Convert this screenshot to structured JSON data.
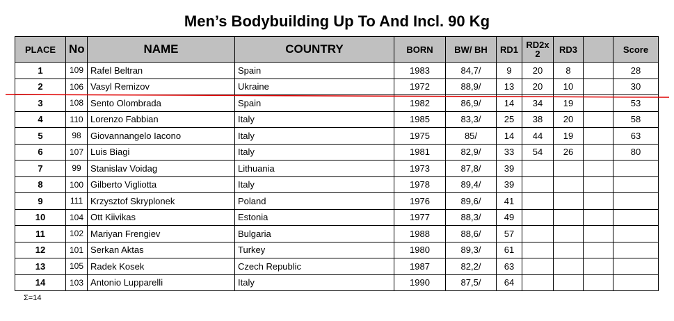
{
  "title": "Men’s Bodybuilding Up To And Incl. 90 Kg",
  "headers": {
    "place": "PLACE",
    "no": "No",
    "name": "NAME",
    "country": "COUNTRY",
    "born": "BORN",
    "bwbh": "BW/ BH",
    "rd1": "RD1",
    "rd2": "RD2x2",
    "rd3": "RD3",
    "score": "Score"
  },
  "rows": [
    {
      "place": 1,
      "no": 109,
      "name": "Rafel Beltran",
      "country": "Spain",
      "born": 1983,
      "bwbh": "84,7/",
      "rd1": 9,
      "rd2": 20,
      "rd3": 8,
      "score": 28
    },
    {
      "place": 2,
      "no": 106,
      "name": "Vasyl Remizov",
      "country": "Ukraine",
      "born": 1972,
      "bwbh": "88,9/",
      "rd1": 13,
      "rd2": 20,
      "rd3": 10,
      "score": 30
    },
    {
      "place": 3,
      "no": 108,
      "name": "Sento Olombrada",
      "country": "Spain",
      "born": 1982,
      "bwbh": "86,9/",
      "rd1": 14,
      "rd2": 34,
      "rd3": 19,
      "score": 53
    },
    {
      "place": 4,
      "no": 110,
      "name": "Lorenzo Fabbian",
      "country": "Italy",
      "born": 1985,
      "bwbh": "83,3/",
      "rd1": 25,
      "rd2": 38,
      "rd3": 20,
      "score": 58
    },
    {
      "place": 5,
      "no": 98,
      "name": "Giovannangelo Iacono",
      "country": "Italy",
      "born": 1975,
      "bwbh": "85/",
      "rd1": 14,
      "rd2": 44,
      "rd3": 19,
      "score": 63
    },
    {
      "place": 6,
      "no": 107,
      "name": "Luis Biagi",
      "country": "Italy",
      "born": 1981,
      "bwbh": "82,9/",
      "rd1": 33,
      "rd2": 54,
      "rd3": 26,
      "score": 80
    },
    {
      "place": 7,
      "no": 99,
      "name": "Stanislav Voidag",
      "country": "Lithuania",
      "born": 1973,
      "bwbh": "87,8/",
      "rd1": 39
    },
    {
      "place": 8,
      "no": 100,
      "name": "Gilberto Vigliotta",
      "country": "Italy",
      "born": 1978,
      "bwbh": "89,4/",
      "rd1": 39
    },
    {
      "place": 9,
      "no": 111,
      "name": "Krzysztof Skryplonek",
      "country": "Poland",
      "born": 1976,
      "bwbh": "89,6/",
      "rd1": 41
    },
    {
      "place": 10,
      "no": 104,
      "name": "Ott Kiivikas",
      "country": "Estonia",
      "born": 1977,
      "bwbh": "88,3/",
      "rd1": 49
    },
    {
      "place": 11,
      "no": 102,
      "name": "Mariyan Frengiev",
      "country": "Bulgaria",
      "born": 1988,
      "bwbh": "88,6/",
      "rd1": 57
    },
    {
      "place": 12,
      "no": 101,
      "name": "Serkan Aktas",
      "country": "Turkey",
      "born": 1980,
      "bwbh": "89,3/",
      "rd1": 61
    },
    {
      "place": 13,
      "no": 105,
      "name": "Radek Kosek",
      "country": "Czech Republic",
      "born": 1987,
      "bwbh": "82,2/",
      "rd1": 63
    },
    {
      "place": 14,
      "no": 103,
      "name": "Antonio Lupparelli",
      "country": "Italy",
      "born": 1990,
      "bwbh": "87,5/",
      "rd1": 64
    }
  ],
  "footer": "Σ=14"
}
